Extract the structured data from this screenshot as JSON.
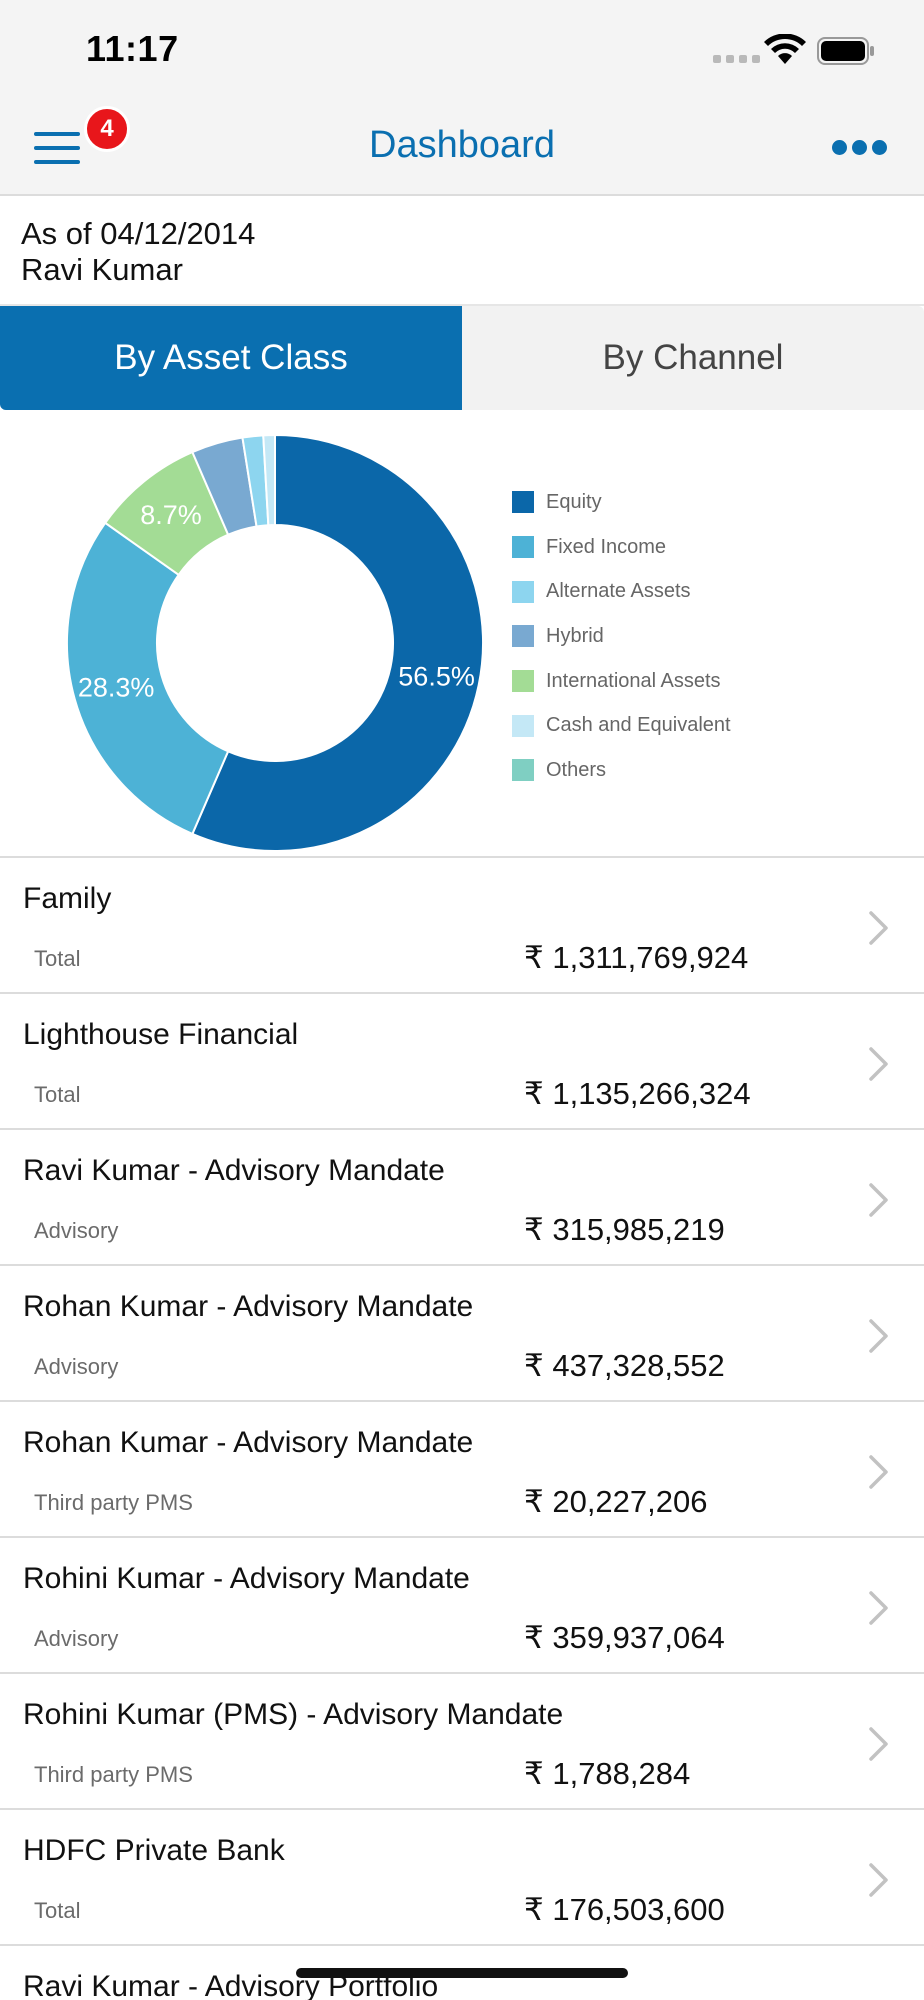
{
  "status_bar": {
    "time": "11:17"
  },
  "nav": {
    "title": "Dashboard",
    "badge_count": "4"
  },
  "info": {
    "as_of": "As of 04/12/2014",
    "client_name": "Ravi Kumar"
  },
  "segments": {
    "asset_class": "By Asset Class",
    "channel": "By Channel",
    "selected": "asset_class"
  },
  "colors": {
    "accent": "#0a6fb0",
    "badge": "#e8161b"
  },
  "chart_data": {
    "type": "pie",
    "style": "donut",
    "categories": [
      "Equity",
      "Fixed Income",
      "Alternate Assets",
      "Hybrid",
      "International Assets",
      "Cash and Equivalent",
      "Others"
    ],
    "slices": [
      {
        "name": "Equity",
        "value": 56.5,
        "label": "56.5%",
        "color": "#0b67a9"
      },
      {
        "name": "Fixed Income",
        "value": 28.3,
        "label": "28.3%",
        "color": "#4db2d6"
      },
      {
        "name": "International Assets",
        "value": 8.7,
        "label": "8.7%",
        "color": "#a3dc95"
      },
      {
        "name": "Hybrid",
        "value": 4.0,
        "label": "",
        "color": "#79a9d1"
      },
      {
        "name": "Alternate Assets",
        "value": 1.6,
        "label": "",
        "color": "#8dd5ef"
      },
      {
        "name": "Cash and Equivalent",
        "value": 0.9,
        "label": "",
        "color": "#c4e8f6"
      }
    ],
    "legend": [
      {
        "label": "Equity",
        "color": "#0b67a9"
      },
      {
        "label": "Fixed Income",
        "color": "#4db2d6"
      },
      {
        "label": "Alternate Assets",
        "color": "#8dd5ef"
      },
      {
        "label": "Hybrid",
        "color": "#79a9d1"
      },
      {
        "label": "International Assets",
        "color": "#a3dc95"
      },
      {
        "label": "Cash and Equivalent",
        "color": "#c4e8f6"
      },
      {
        "label": "Others",
        "color": "#7fcfc2"
      }
    ],
    "legend_position": "right"
  },
  "accounts": [
    {
      "title": "Family",
      "subtitle": "Total",
      "amount": "₹ 1,311,769,924"
    },
    {
      "title": "Lighthouse Financial",
      "subtitle": "Total",
      "amount": "₹ 1,135,266,324"
    },
    {
      "title": "Ravi Kumar - Advisory Mandate",
      "subtitle": "Advisory",
      "amount": "₹ 315,985,219"
    },
    {
      "title": "Rohan Kumar - Advisory Mandate",
      "subtitle": "Advisory",
      "amount": "₹ 437,328,552"
    },
    {
      "title": "Rohan Kumar - Advisory Mandate",
      "subtitle": "Third party PMS",
      "amount": "₹ 20,227,206"
    },
    {
      "title": "Rohini Kumar - Advisory Mandate",
      "subtitle": "Advisory",
      "amount": "₹ 359,937,064"
    },
    {
      "title": "Rohini Kumar (PMS) - Advisory Mandate",
      "subtitle": "Third party PMS",
      "amount": "₹ 1,788,284"
    },
    {
      "title": "HDFC Private Bank",
      "subtitle": "Total",
      "amount": "₹ 176,503,600"
    },
    {
      "title": "Ravi Kumar - Advisory Portfolio",
      "subtitle": "",
      "amount": ""
    }
  ]
}
